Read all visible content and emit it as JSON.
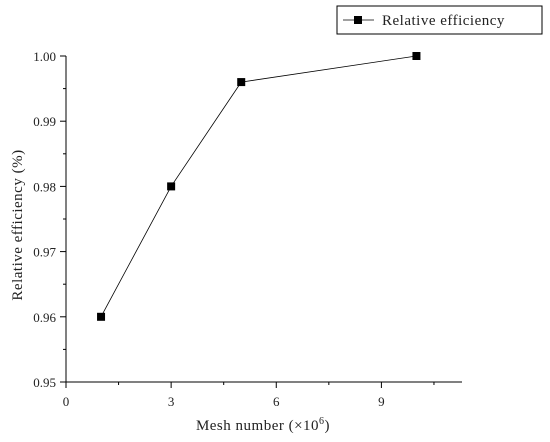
{
  "chart_data": {
    "type": "line",
    "title": "",
    "xlabel": "Mesh number (×10",
    "xlabel_sup": "6",
    "xlabel_close": ")",
    "ylabel": "Relative efficiency (%)",
    "xlim": [
      0,
      11.3
    ],
    "ylim": [
      0.95,
      1.0
    ],
    "xticks": [
      0,
      3,
      6,
      9
    ],
    "xtick_labels": [
      "0",
      "3",
      "6",
      "9"
    ],
    "yticks": [
      0.95,
      0.96,
      0.97,
      0.98,
      0.99,
      1.0
    ],
    "ytick_labels": [
      "0.95",
      "0.96",
      "0.97",
      "0.98",
      "0.99",
      "1.00"
    ],
    "grid": false,
    "legend_position": "top-right",
    "series": [
      {
        "name": "Relative efficiency",
        "color": "#000000",
        "marker": "square",
        "x": [
          1,
          3,
          5,
          10
        ],
        "y": [
          0.96,
          0.98,
          0.996,
          1.0
        ]
      }
    ]
  }
}
